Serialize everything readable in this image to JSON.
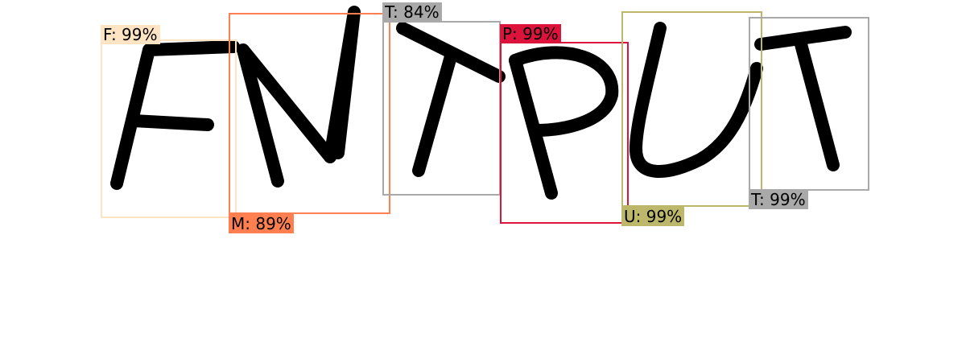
{
  "image": {
    "description_word": "FMTPUT"
  },
  "detections": [
    {
      "letter": "F",
      "label": "F: 99%",
      "confidence": 0.99,
      "color": "#FFE4C4"
    },
    {
      "letter": "M",
      "label": "M: 89%",
      "confidence": 0.89,
      "color": "#FF7F50"
    },
    {
      "letter": "T",
      "label": "T: 84%",
      "confidence": 0.84,
      "color": "#A9A9A9"
    },
    {
      "letter": "P",
      "label": "P: 99%",
      "confidence": 0.99,
      "color": "#DC143C"
    },
    {
      "letter": "U",
      "label": "U: 99%",
      "confidence": 0.99,
      "color": "#BDB76B"
    },
    {
      "letter": "T",
      "label": "T: 99%",
      "confidence": 0.99,
      "color": "#A9A9A9"
    }
  ]
}
